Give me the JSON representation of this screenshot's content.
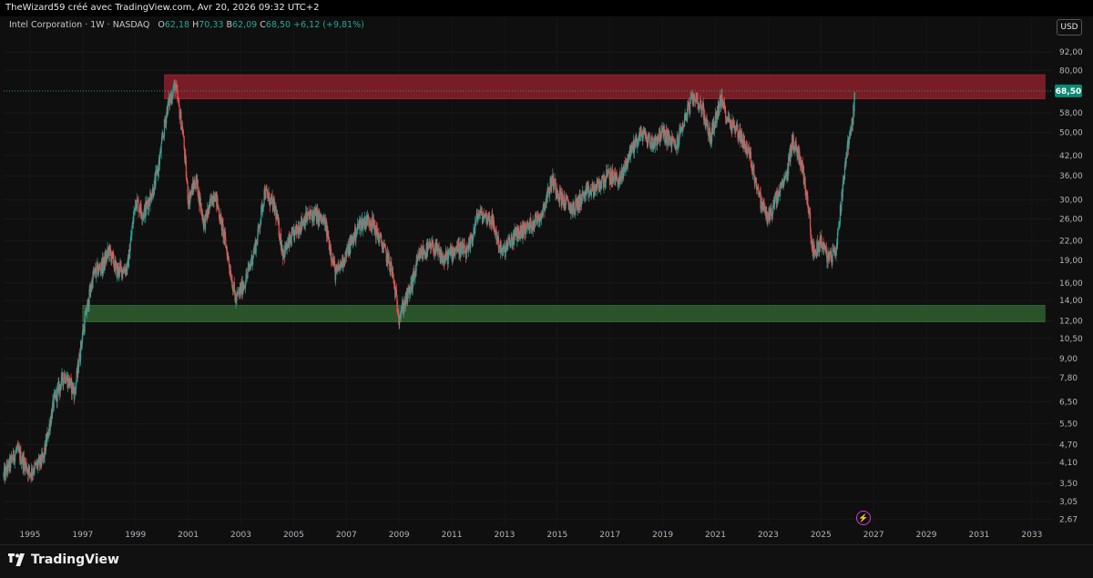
{
  "header": {
    "watermark_text": "TheWizard59 créé avec TradingView.com, Avr 20, 2026 09:32 UTC+2"
  },
  "legend": {
    "symbol": "Intel Corporation · 1W · NASDAQ",
    "open_label": "O",
    "open": "62,18",
    "high_label": "H",
    "high": "70,33",
    "low_label": "B",
    "low": "62,09",
    "close_label": "C",
    "close": "68,50",
    "change": "+6,12 (+9,81%)"
  },
  "toolbar": {
    "currency_label": "USD"
  },
  "footer": {
    "brand": "TradingView"
  },
  "colors": {
    "up": "#26a69a",
    "down": "#ef5350",
    "resistance_zone": "#8b1e2a",
    "support_zone": "#2f5f2f",
    "price_badge": "#0b8a72"
  },
  "chart_data": {
    "type": "candlestick",
    "scale": "log",
    "xlim": [
      1994.0,
      2033.8
    ],
    "ylim": [
      2.55,
      105
    ],
    "x_ticks": [
      "1995",
      "1997",
      "1999",
      "2001",
      "2003",
      "2005",
      "2007",
      "2009",
      "2011",
      "2013",
      "2015",
      "2017",
      "2019",
      "2021",
      "2023",
      "2025",
      "2027",
      "2029",
      "2031",
      "2033"
    ],
    "y_ticks": [
      {
        "value": 92,
        "label": "92,00"
      },
      {
        "value": 80,
        "label": "80,00"
      },
      {
        "value": 58,
        "label": "58,00"
      },
      {
        "value": 50,
        "label": "50,00"
      },
      {
        "value": 42,
        "label": "42,00"
      },
      {
        "value": 36,
        "label": "36,00"
      },
      {
        "value": 30,
        "label": "30,00"
      },
      {
        "value": 26,
        "label": "26,00"
      },
      {
        "value": 22,
        "label": "22,00"
      },
      {
        "value": 19,
        "label": "19,00"
      },
      {
        "value": 16,
        "label": "16,00"
      },
      {
        "value": 14,
        "label": "14,00"
      },
      {
        "value": 12,
        "label": "12,00"
      },
      {
        "value": 10.5,
        "label": "10,50"
      },
      {
        "value": 9,
        "label": "9,00"
      },
      {
        "value": 7.8,
        "label": "7,80"
      },
      {
        "value": 6.5,
        "label": "6,50"
      },
      {
        "value": 5.5,
        "label": "5,50"
      },
      {
        "value": 4.7,
        "label": "4,70"
      },
      {
        "value": 4.1,
        "label": "4,10"
      },
      {
        "value": 3.5,
        "label": "3,50"
      },
      {
        "value": 3.05,
        "label": "3,05"
      },
      {
        "value": 2.67,
        "label": "2,67"
      }
    ],
    "last_price": {
      "value": 68.5,
      "label": "68,50"
    },
    "zones": [
      {
        "name": "resistance",
        "x_start": 2000.1,
        "x_end": 2033.5,
        "y_low": 64.5,
        "y_high": 77.5
      },
      {
        "name": "support",
        "x_start": 1997.0,
        "x_end": 2033.5,
        "y_low": 11.9,
        "y_high": 13.5
      }
    ],
    "price_path": [
      [
        1994.0,
        3.7
      ],
      [
        1994.5,
        4.5
      ],
      [
        1995.0,
        3.8
      ],
      [
        1995.5,
        4.2
      ],
      [
        1995.9,
        6.5
      ],
      [
        1996.3,
        8.0
      ],
      [
        1996.7,
        7.0
      ],
      [
        1997.0,
        11.0
      ],
      [
        1997.4,
        17.0
      ],
      [
        1997.8,
        18.5
      ],
      [
        1998.0,
        20.5
      ],
      [
        1998.3,
        17.5
      ],
      [
        1998.7,
        18.0
      ],
      [
        1999.0,
        30.0
      ],
      [
        1999.3,
        27.0
      ],
      [
        1999.7,
        33.0
      ],
      [
        1999.9,
        40.0
      ],
      [
        2000.2,
        60.0
      ],
      [
        2000.5,
        72.0
      ],
      [
        2000.8,
        50.0
      ],
      [
        2001.0,
        30.0
      ],
      [
        2001.3,
        35.0
      ],
      [
        2001.6,
        25.0
      ],
      [
        2002.0,
        32.0
      ],
      [
        2002.4,
        22.0
      ],
      [
        2002.8,
        14.0
      ],
      [
        2003.2,
        16.5
      ],
      [
        2003.6,
        22.0
      ],
      [
        2003.9,
        32.0
      ],
      [
        2004.3,
        28.0
      ],
      [
        2004.6,
        20.0
      ],
      [
        2005.0,
        23.0
      ],
      [
        2005.4,
        26.0
      ],
      [
        2005.8,
        27.0
      ],
      [
        2006.2,
        25.0
      ],
      [
        2006.6,
        17.0
      ],
      [
        2007.0,
        20.0
      ],
      [
        2007.5,
        25.0
      ],
      [
        2007.9,
        26.0
      ],
      [
        2008.3,
        22.0
      ],
      [
        2008.7,
        18.0
      ],
      [
        2009.0,
        12.5
      ],
      [
        2009.4,
        15.0
      ],
      [
        2009.8,
        20.0
      ],
      [
        2010.3,
        21.0
      ],
      [
        2010.7,
        19.0
      ],
      [
        2011.2,
        21.0
      ],
      [
        2011.6,
        20.0
      ],
      [
        2012.0,
        27.0
      ],
      [
        2012.5,
        26.0
      ],
      [
        2012.9,
        20.0
      ],
      [
        2013.4,
        23.0
      ],
      [
        2013.9,
        24.5
      ],
      [
        2014.4,
        27.0
      ],
      [
        2014.8,
        35.0
      ],
      [
        2015.2,
        30.0
      ],
      [
        2015.6,
        28.0
      ],
      [
        2016.0,
        31.0
      ],
      [
        2016.5,
        33.0
      ],
      [
        2016.9,
        36.0
      ],
      [
        2017.4,
        35.0
      ],
      [
        2017.8,
        44.0
      ],
      [
        2018.2,
        50.0
      ],
      [
        2018.6,
        46.0
      ],
      [
        2019.0,
        50.0
      ],
      [
        2019.5,
        45.0
      ],
      [
        2019.9,
        58.0
      ],
      [
        2020.2,
        66.0
      ],
      [
        2020.5,
        60.0
      ],
      [
        2020.8,
        48.0
      ],
      [
        2021.2,
        64.0
      ],
      [
        2021.5,
        55.0
      ],
      [
        2021.9,
        50.0
      ],
      [
        2022.3,
        42.0
      ],
      [
        2022.7,
        30.0
      ],
      [
        2023.0,
        26.0
      ],
      [
        2023.3,
        30.0
      ],
      [
        2023.7,
        36.0
      ],
      [
        2023.9,
        47.0
      ],
      [
        2024.2,
        42.0
      ],
      [
        2024.5,
        30.0
      ],
      [
        2024.7,
        20.0
      ],
      [
        2025.0,
        22.0
      ],
      [
        2025.3,
        19.0
      ],
      [
        2025.6,
        21.0
      ],
      [
        2025.8,
        32.0
      ],
      [
        2026.0,
        45.0
      ],
      [
        2026.2,
        55.0
      ],
      [
        2026.3,
        68.5
      ]
    ]
  }
}
